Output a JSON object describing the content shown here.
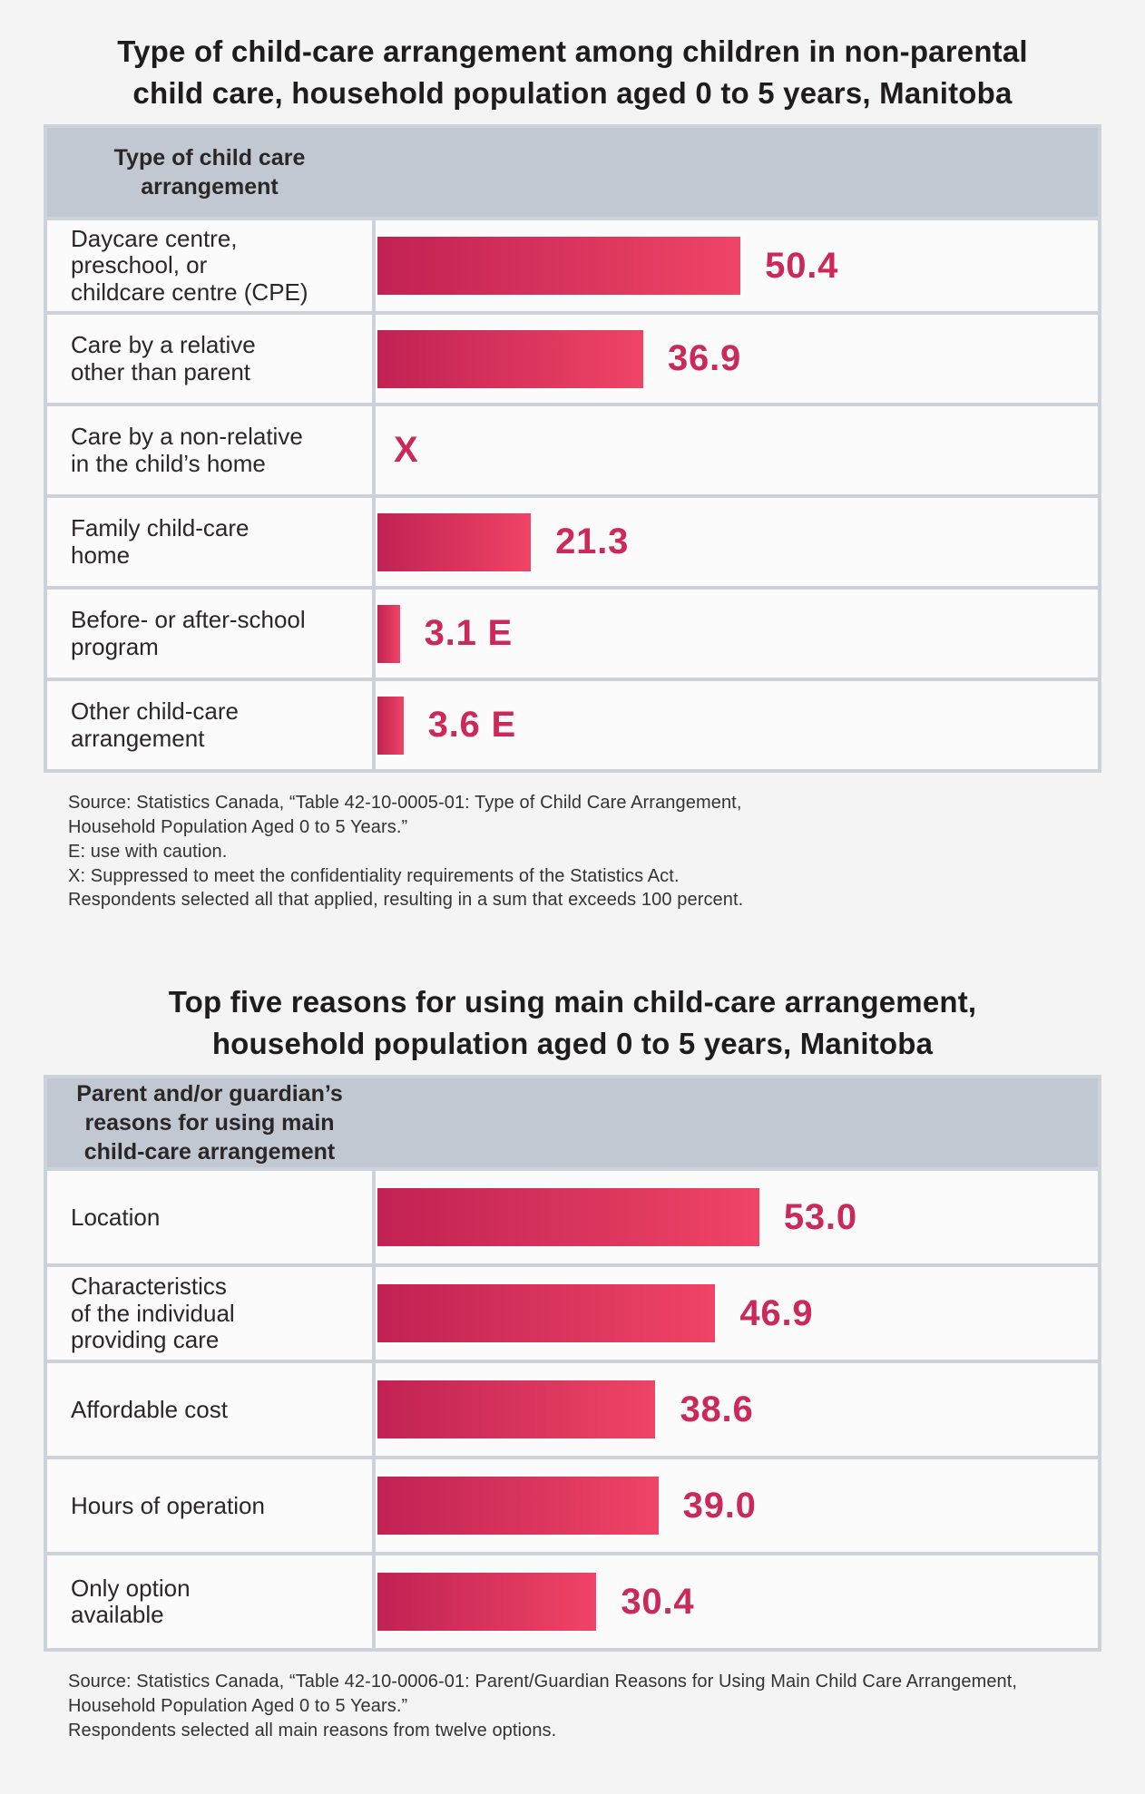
{
  "page": {
    "background": "#f4f4f5",
    "bar_gradient_start": "#c12253",
    "bar_gradient_end": "#ef4466",
    "value_text_color": "#cb295a",
    "table_header_bg": "#c2c8d1",
    "grid_line_color": "#ccd2d9"
  },
  "chart_data": [
    {
      "type": "bar",
      "orientation": "horizontal",
      "title": "Type of child-care arrangement among children in non-parental\nchild care, household population aged 0 to 5 years, Manitoba",
      "column_header": "Type of child care\narrangement",
      "unit": "percent",
      "xlim": [
        0,
        100
      ],
      "grid": false,
      "legend": "none",
      "categories": [
        "Daycare centre, preschool, or childcare centre (CPE)",
        "Care by a relative other than parent",
        "Care by a non-relative in the child’s home",
        "Family child-care home",
        "Before- or after-school program",
        "Other child-care arrangement"
      ],
      "values": [
        50.4,
        36.9,
        null,
        21.3,
        3.1,
        3.6
      ],
      "value_labels": [
        "50.4",
        "36.9",
        "X",
        "21.3",
        "3.1 E",
        "3.6 E"
      ],
      "rows": [
        {
          "label": "Daycare centre,\npreschool, or\nchildcare centre (CPE)",
          "value": 50.4,
          "display": "50.4"
        },
        {
          "label": "Care by a relative\nother than parent",
          "value": 36.9,
          "display": "36.9"
        },
        {
          "label": "Care by a non-relative\nin the child’s home",
          "value": null,
          "display": "X"
        },
        {
          "label": "Family child-care\nhome",
          "value": 21.3,
          "display": "21.3"
        },
        {
          "label": "Before- or after-school\nprogram",
          "value": 3.1,
          "display": "3.1 E"
        },
        {
          "label": "Other child-care\narrangement",
          "value": 3.6,
          "display": "3.6 E"
        }
      ],
      "source_lines": [
        "Source: Statistics Canada, “Table 42-10-0005-01: Type of Child Care Arrangement,",
        "Household Population Aged 0 to 5 Years.”",
        "E: use with caution.",
        "X: Suppressed to meet the confidentiality requirements of the Statistics Act.",
        "Respondents selected all that applied, resulting in a sum that exceeds 100 percent."
      ]
    },
    {
      "type": "bar",
      "orientation": "horizontal",
      "title": "Top five reasons for using main child-care arrangement,\nhousehold population aged 0 to 5 years, Manitoba",
      "column_header": "Parent and/or guardian’s\nreasons for using main\nchild-care arrangement",
      "unit": "percent",
      "xlim": [
        0,
        100
      ],
      "grid": false,
      "legend": "none",
      "categories": [
        "Location",
        "Characteristics of the individual providing care",
        "Affordable cost",
        "Hours of operation",
        "Only option available"
      ],
      "values": [
        53.0,
        46.9,
        38.6,
        39.0,
        30.4
      ],
      "value_labels": [
        "53.0",
        "46.9",
        "38.6",
        "39.0",
        "30.4"
      ],
      "rows": [
        {
          "label": "Location",
          "value": 53.0,
          "display": "53.0"
        },
        {
          "label": "Characteristics\nof the individual\nproviding care",
          "value": 46.9,
          "display": "46.9"
        },
        {
          "label": "Affordable cost",
          "value": 38.6,
          "display": "38.6"
        },
        {
          "label": "Hours of operation",
          "value": 39.0,
          "display": "39.0"
        },
        {
          "label": "Only option\navailable",
          "value": 30.4,
          "display": "30.4"
        }
      ],
      "source_lines": [
        "Source: Statistics Canada, “Table 42-10-0006-01: Parent/Guardian Reasons for Using Main Child Care Arrangement,",
        "Household Population Aged 0 to 5 Years.”",
        "Respondents selected all main reasons from twelve options."
      ]
    }
  ]
}
